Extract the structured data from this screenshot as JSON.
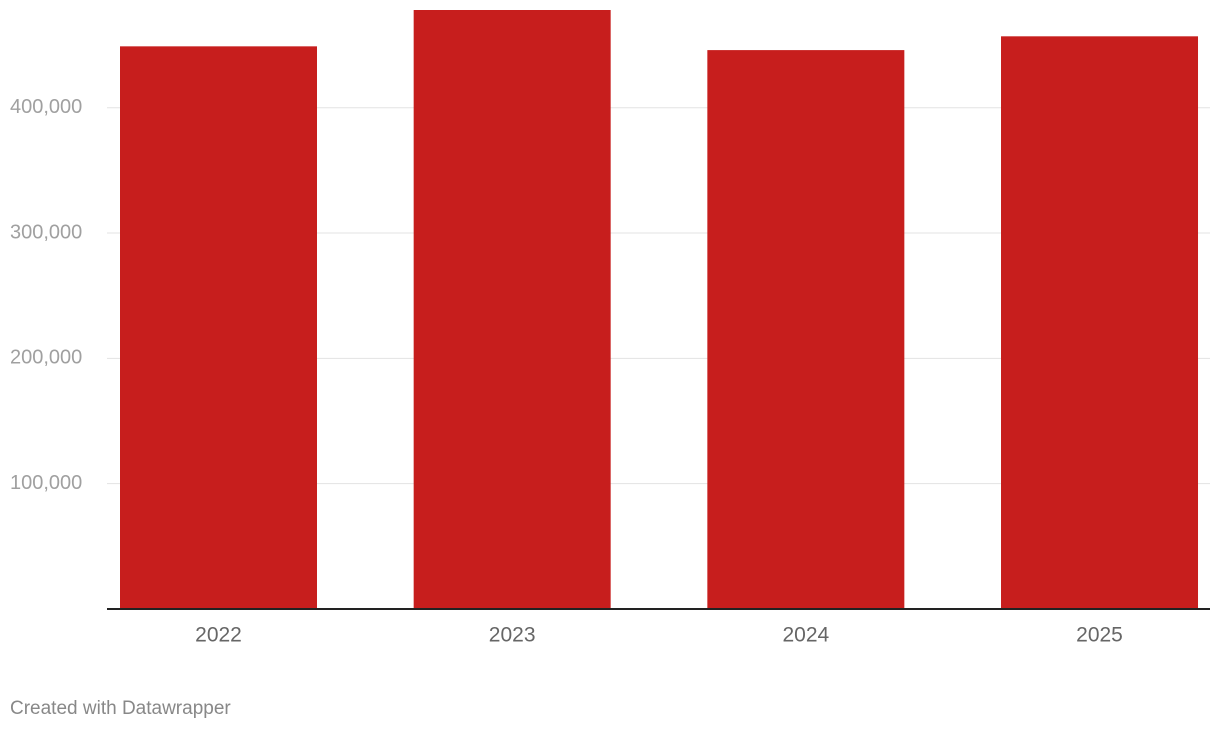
{
  "chart_data": {
    "type": "bar",
    "categories": [
      "2022",
      "2023",
      "2024",
      "2025"
    ],
    "values": [
      449000,
      478000,
      446000,
      457000
    ],
    "color": "#c71e1d",
    "ylim": [
      0,
      478000
    ],
    "yticks": [
      {
        "value": 100000,
        "label": "100,000"
      },
      {
        "value": 200000,
        "label": "200,000"
      },
      {
        "value": 300000,
        "label": "300,000"
      },
      {
        "value": 400000,
        "label": "400,000"
      }
    ],
    "grid": true,
    "credit": "Created with Datawrapper"
  }
}
